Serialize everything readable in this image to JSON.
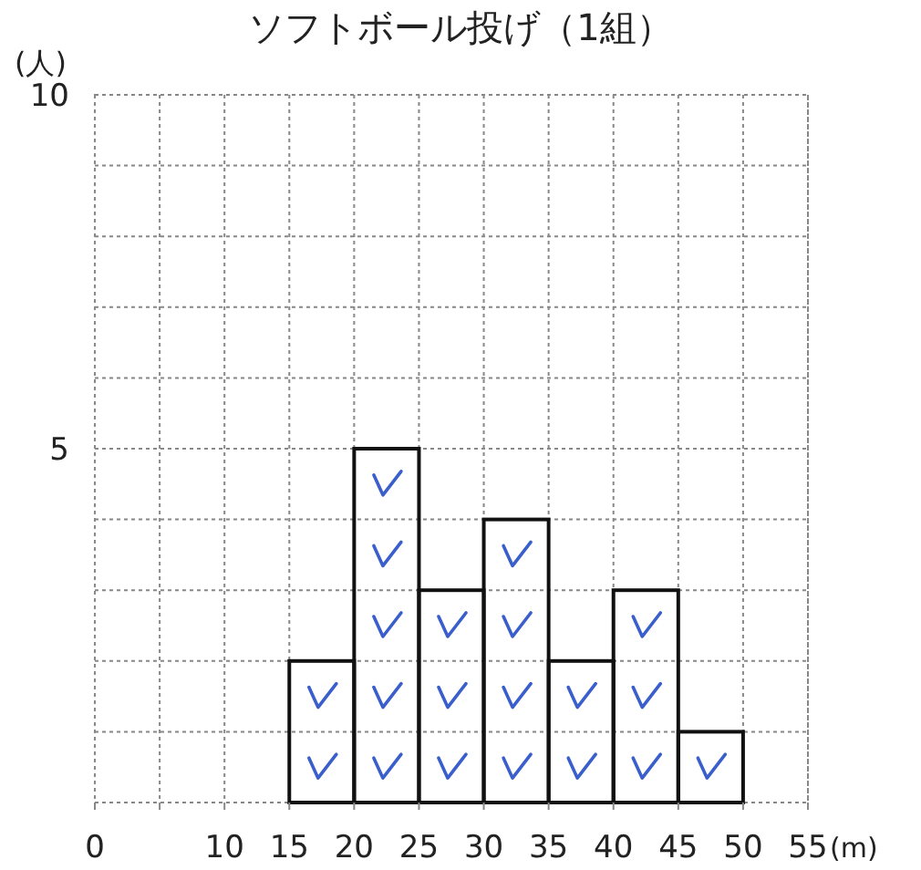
{
  "chart_data": {
    "type": "histogram",
    "title": "ソフトボール投げ（1組）",
    "ylabel": "(人)",
    "xlabel": "(m)",
    "bins": [
      0,
      5,
      10,
      15,
      20,
      25,
      30,
      35,
      40,
      45,
      50,
      55
    ],
    "values": [
      0,
      0,
      0,
      2,
      5,
      3,
      4,
      2,
      3,
      1,
      0
    ],
    "color": "#111111",
    "xlim": [
      0,
      55
    ],
    "ylim": [
      0,
      10
    ],
    "xticks": [
      0,
      {
        "value": 5,
        "label": null
      },
      10,
      15,
      20,
      25,
      30,
      35,
      40,
      45,
      50,
      55
    ],
    "yticks": [
      {
        "value": 0,
        "label": null
      },
      {
        "value": 1,
        "label": null
      },
      {
        "value": 2,
        "label": null
      },
      {
        "value": 3,
        "label": null
      },
      {
        "value": 4,
        "label": null
      },
      5,
      {
        "value": 6,
        "label": null
      },
      {
        "value": 7,
        "label": null
      },
      {
        "value": 8,
        "label": null
      },
      {
        "value": 9,
        "label": null
      },
      10
    ],
    "grid": true
  }
}
